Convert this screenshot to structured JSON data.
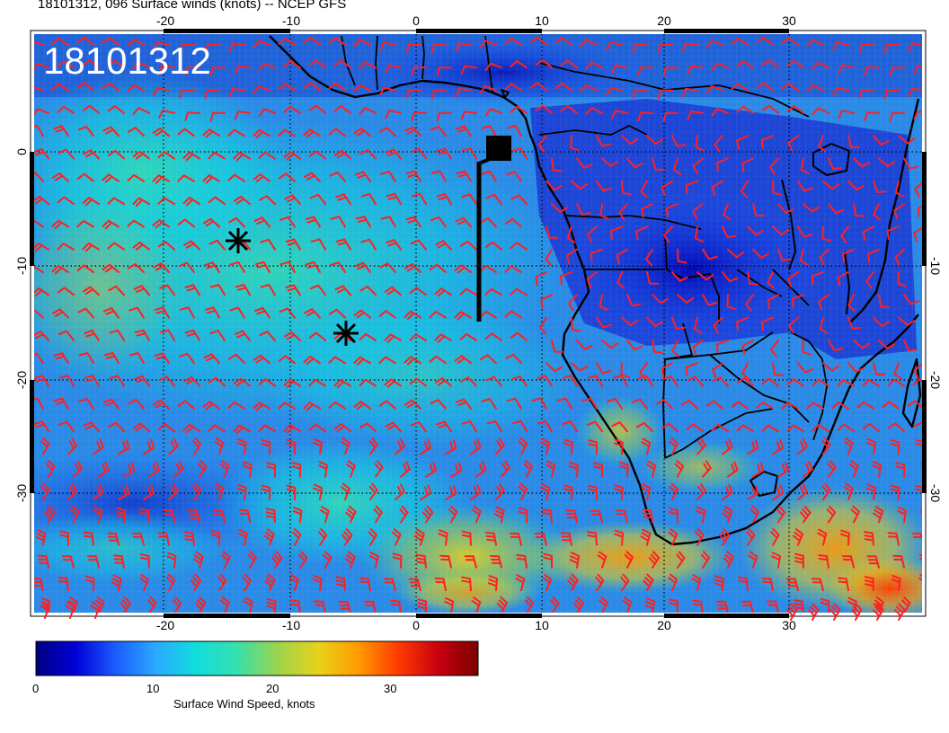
{
  "title": "18101312, 096 Surface winds (knots) -- NCEP GFS",
  "date_stamp": "18101312",
  "map": {
    "projection": "cylindrical",
    "lon_range": [
      -30,
      40
    ],
    "lat_range": [
      -40,
      10
    ],
    "grid_lines": "dotted",
    "land_outline_color": "#000000",
    "wind_barb_color": "#ff2020"
  },
  "axes": {
    "x_ticks": [
      "-20",
      "-10",
      "0",
      "10",
      "20",
      "30"
    ],
    "y_ticks": [
      "0",
      "-10",
      "-20",
      "-30"
    ]
  },
  "markers": [
    {
      "symbol": "asterisk",
      "lon": -14.3,
      "lat": -8.5
    },
    {
      "symbol": "asterisk",
      "lon": -5.8,
      "lat": -16.3
    },
    {
      "symbol": "square",
      "lon": 6.4,
      "lat": 0.3
    }
  ],
  "colorbar": {
    "title": "Surface Wind Speed, knots",
    "ticks": [
      "0",
      "10",
      "20",
      "30"
    ],
    "range": [
      0,
      37
    ],
    "colors": [
      "#00007f",
      "#0000d8",
      "#1c5cff",
      "#2aa8ff",
      "#11dcdc",
      "#33e0b0",
      "#9ed44a",
      "#e8d219",
      "#ff9a00",
      "#ff3a00",
      "#c80010",
      "#7a0000"
    ]
  }
}
